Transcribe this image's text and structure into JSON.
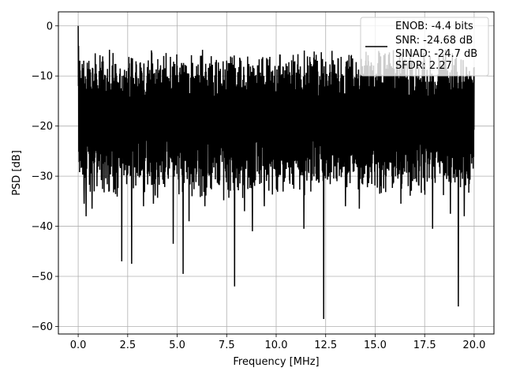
{
  "chart_data": {
    "type": "line",
    "xlabel": "Frequency [MHz]",
    "ylabel": "PSD [dB]",
    "xlim": [
      -1.0,
      21.0
    ],
    "ylim": [
      -61.5,
      2.8
    ],
    "x_ticks": [
      0.0,
      2.5,
      5.0,
      7.5,
      10.0,
      12.5,
      15.0,
      17.5,
      20.0
    ],
    "x_tick_labels": [
      "0.0",
      "2.5",
      "5.0",
      "7.5",
      "10.0",
      "12.5",
      "15.0",
      "17.5",
      "20.0"
    ],
    "y_ticks": [
      0,
      -10,
      -20,
      -30,
      -40,
      -50,
      -60
    ],
    "y_tick_labels": [
      "0",
      "−10",
      "−20",
      "−30",
      "−40",
      "−50",
      "−60"
    ],
    "grid": true,
    "legend_position": "top-right",
    "line_color": "#000000",
    "series": [
      {
        "legend_lines": [
          "ENOB: -4.4 bits",
          "SNR: -24.68 dB",
          "SINAD: -24.7 dB",
          "SFDR: 2.27"
        ],
        "x_range": [
          0.0,
          20.0
        ],
        "peak_at_start": 0.0,
        "approx_envelope_top": -8,
        "approx_envelope_bottom": -30,
        "deep_notches": [
          {
            "x": 0.3,
            "y": -35.5
          },
          {
            "x": 0.4,
            "y": -38
          },
          {
            "x": 0.7,
            "y": -36.5
          },
          {
            "x": 2.2,
            "y": -47
          },
          {
            "x": 2.7,
            "y": -47.5
          },
          {
            "x": 3.3,
            "y": -36
          },
          {
            "x": 3.8,
            "y": -35.5
          },
          {
            "x": 4.8,
            "y": -43.5
          },
          {
            "x": 5.3,
            "y": -49.5
          },
          {
            "x": 5.6,
            "y": -39
          },
          {
            "x": 6.4,
            "y": -36
          },
          {
            "x": 7.9,
            "y": -52
          },
          {
            "x": 8.4,
            "y": -37
          },
          {
            "x": 8.8,
            "y": -41
          },
          {
            "x": 9.4,
            "y": -36
          },
          {
            "x": 11.4,
            "y": -40.5
          },
          {
            "x": 12.4,
            "y": -58.5
          },
          {
            "x": 13.5,
            "y": -36
          },
          {
            "x": 14.2,
            "y": -36.5
          },
          {
            "x": 16.3,
            "y": -35.5
          },
          {
            "x": 17.9,
            "y": -40.5
          },
          {
            "x": 18.8,
            "y": -37.5
          },
          {
            "x": 19.2,
            "y": -56
          },
          {
            "x": 19.5,
            "y": -38
          }
        ]
      }
    ]
  }
}
